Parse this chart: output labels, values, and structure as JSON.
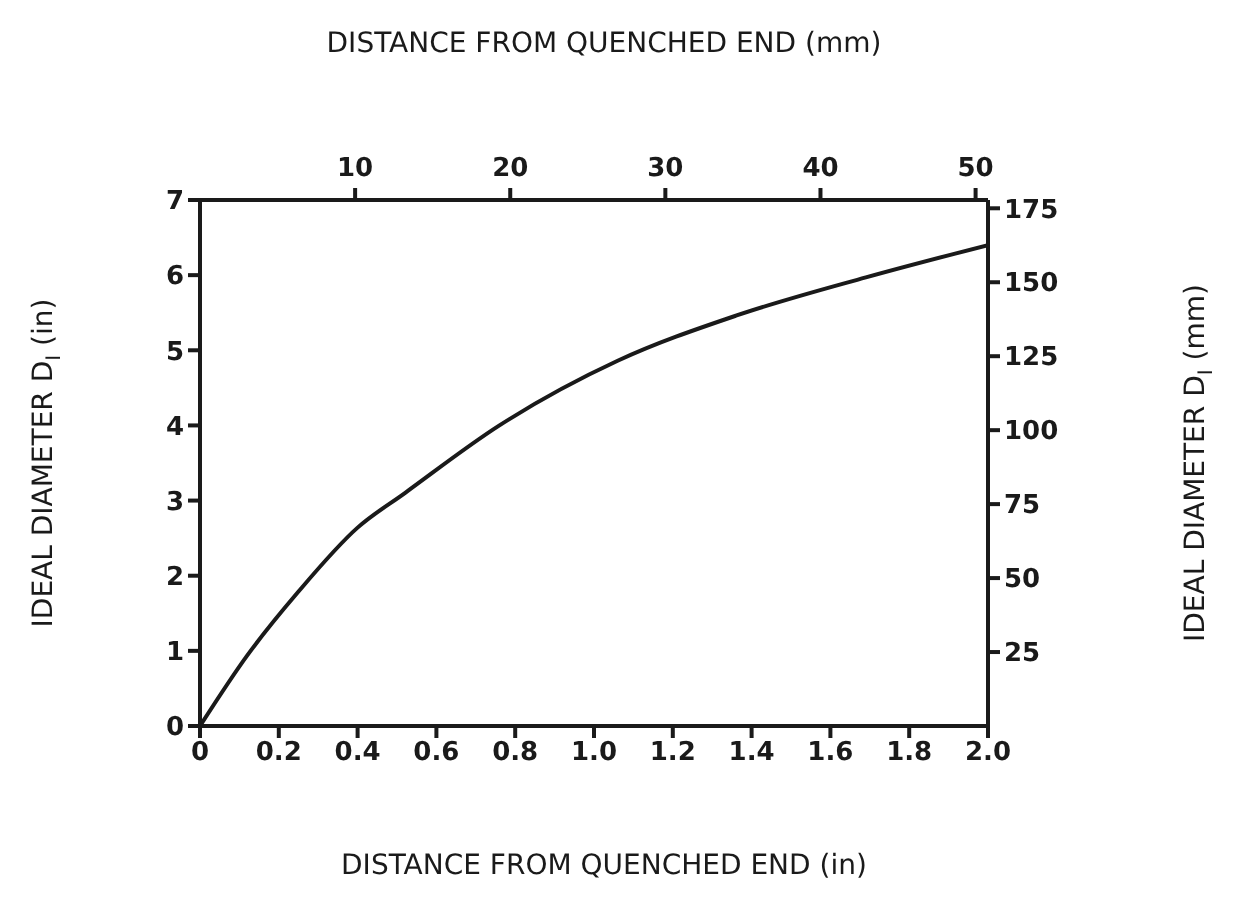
{
  "chart_data": {
    "type": "line",
    "xlabel": "DISTANCE FROM QUENCHED END (in)",
    "x2label": "DISTANCE FROM QUENCHED END (mm)",
    "ylabel": "IDEAL DIAMETER D$_{I}$ (in)",
    "y2label": "IDEAL DIAMETER D$_{I}$ (mm)",
    "x": [
      0,
      0.12,
      0.25,
      0.4,
      0.52,
      0.76,
      1.06,
      1.36,
      1.69,
      2.0
    ],
    "series": [
      {
        "color": "#1a1a1a",
        "values": [
          0,
          0.94,
          1.79,
          2.64,
          3.1,
          4.0,
          4.86,
          5.46,
          5.97,
          6.4
        ]
      }
    ],
    "xlim": [
      0,
      2.0
    ],
    "xticks": [
      0,
      0.2,
      0.4,
      0.6,
      0.8,
      {
        "value": 1,
        "label": "1.0"
      },
      1.2,
      1.4,
      1.6,
      1.8,
      {
        "value": 2,
        "label": "2.0"
      }
    ],
    "x2lim": [
      0,
      50.8
    ],
    "x2ticks": [
      10,
      20,
      30,
      40,
      50
    ],
    "ylim": [
      0,
      7
    ],
    "yticks": [
      0,
      1,
      2,
      3,
      4,
      5,
      6,
      7
    ],
    "y2lim": [
      0,
      177.8
    ],
    "y2ticks": [
      25,
      50,
      75,
      100,
      125,
      150,
      175
    ],
    "grid": false,
    "legend": false,
    "marker": "none",
    "line_style": "solid"
  }
}
